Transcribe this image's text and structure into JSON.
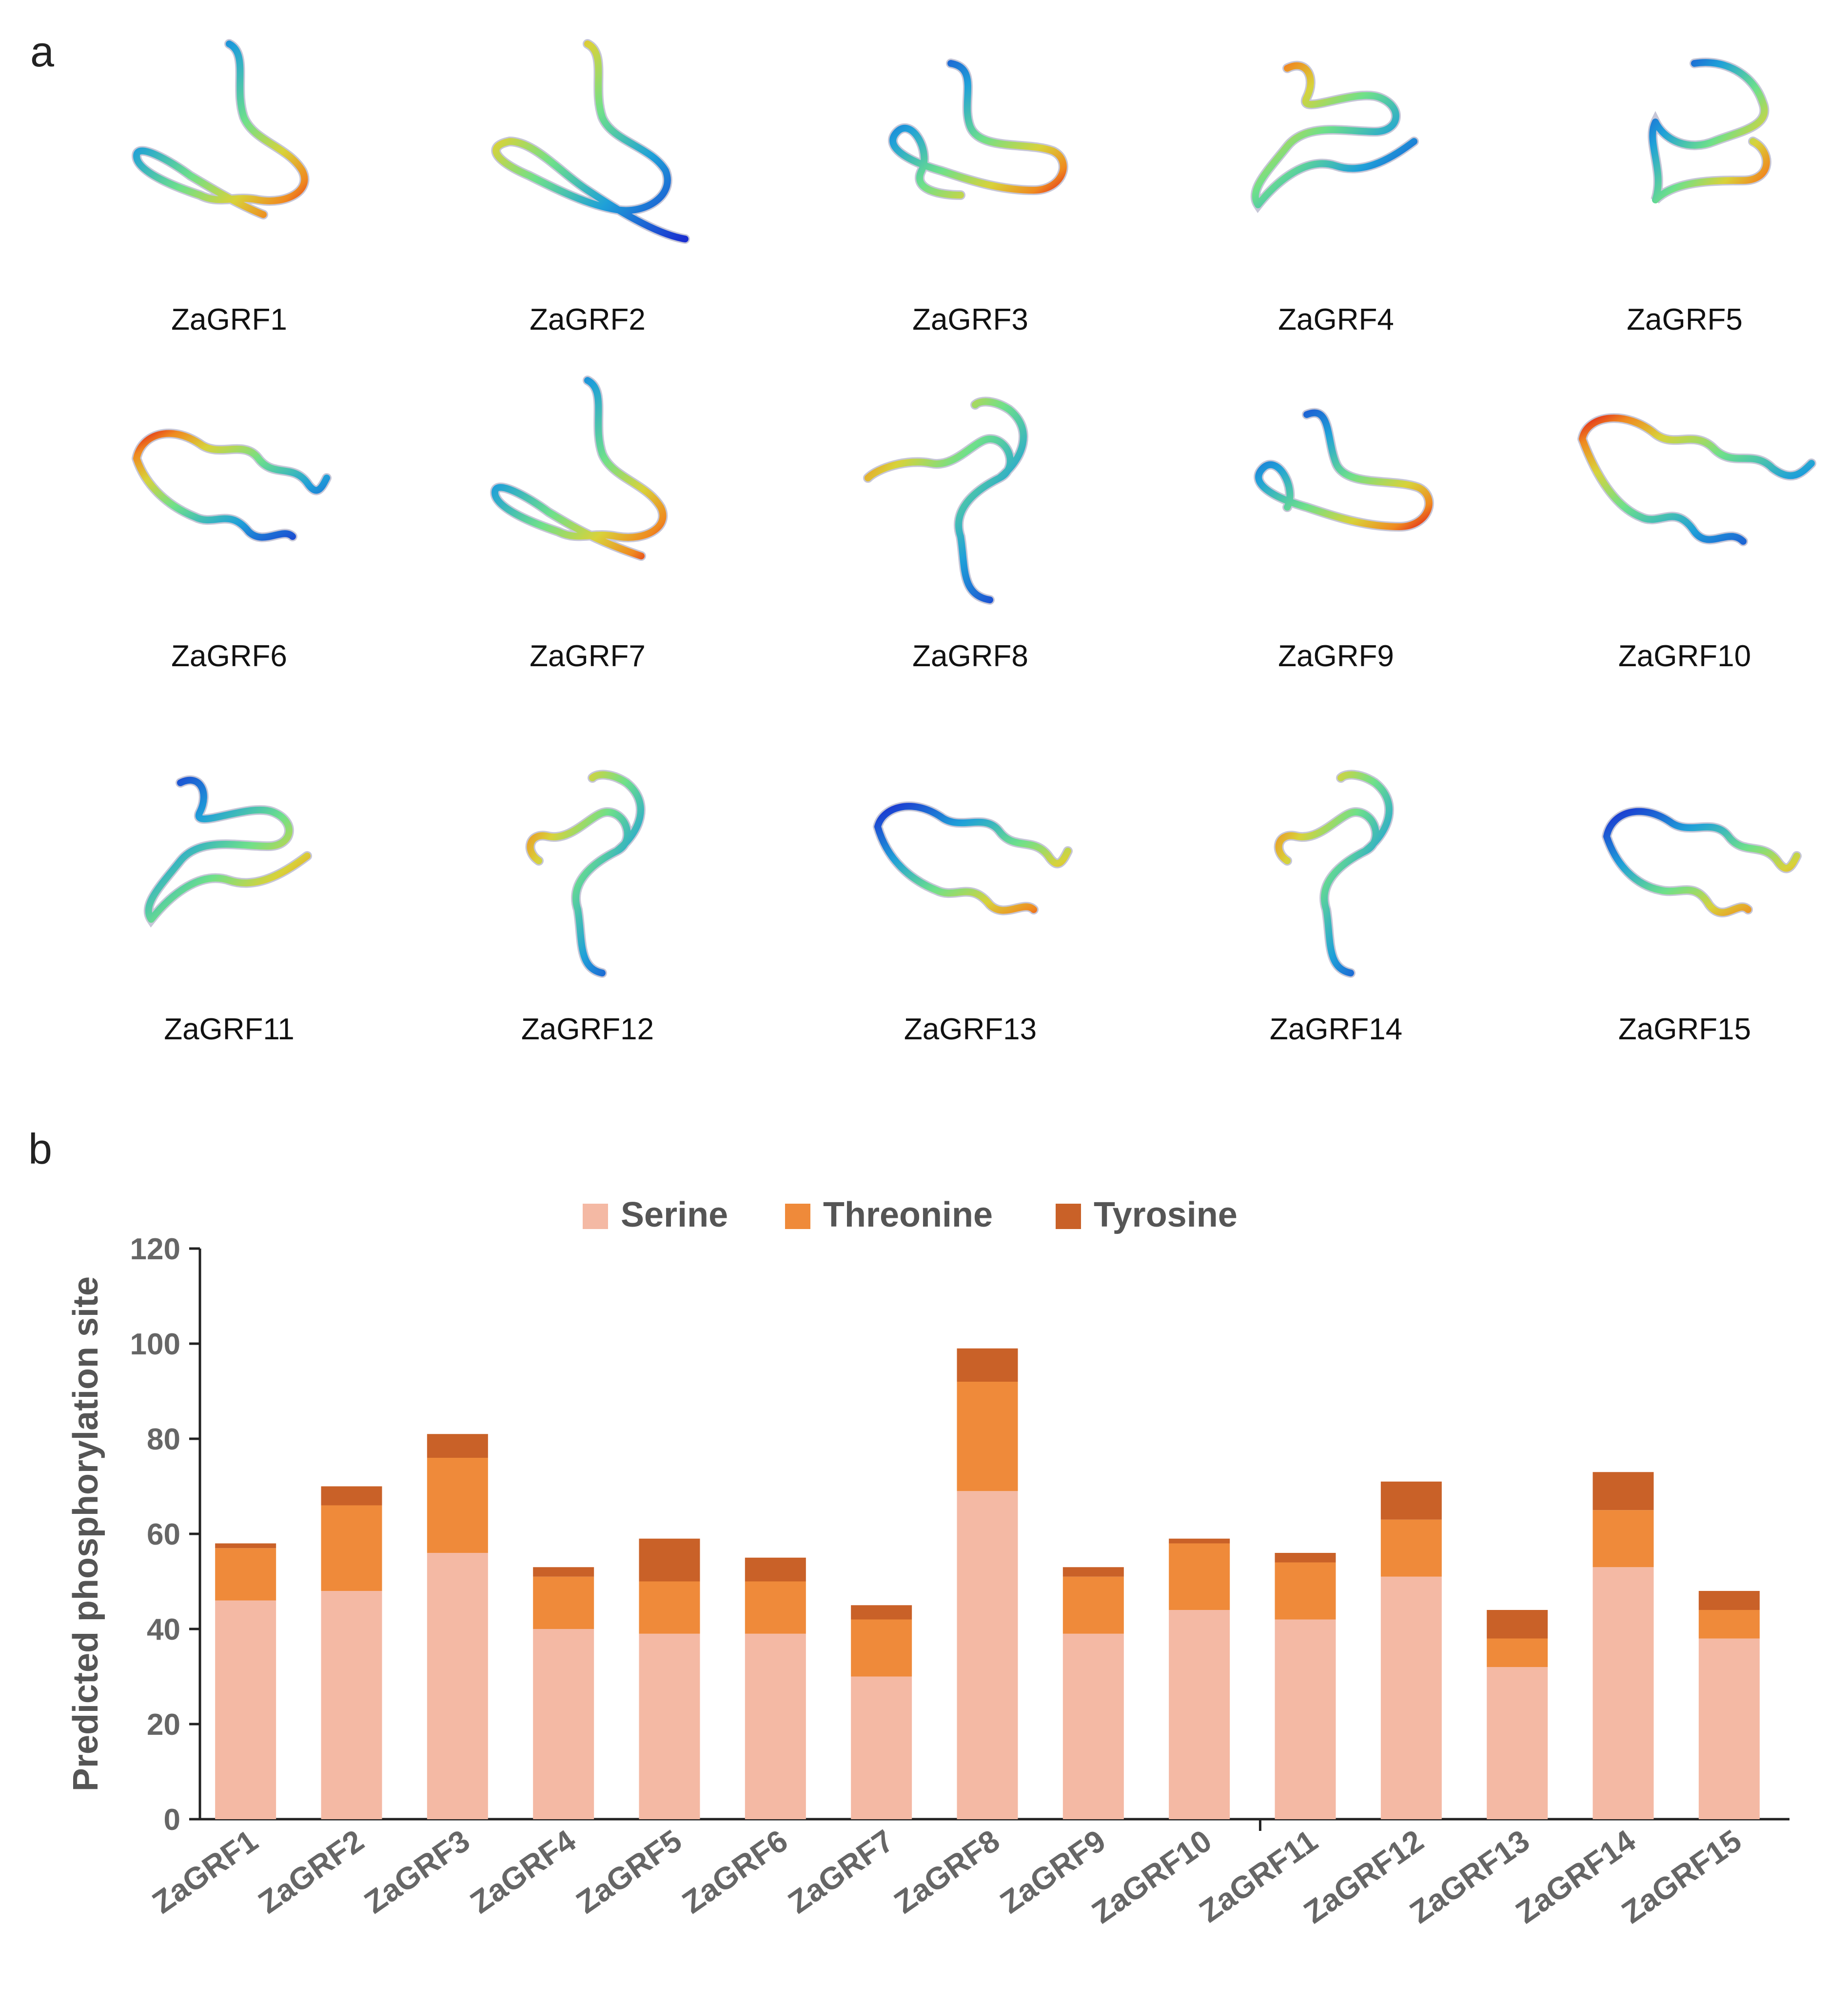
{
  "panel_a": {
    "label": "a",
    "proteins": [
      "ZaGRF1",
      "ZaGRF2",
      "ZaGRF3",
      "ZaGRF4",
      "ZaGRF5",
      "ZaGRF6",
      "ZaGRF7",
      "ZaGRF8",
      "ZaGRF9",
      "ZaGRF10",
      "ZaGRF11",
      "ZaGRF12",
      "ZaGRF13",
      "ZaGRF14",
      "ZaGRF15"
    ]
  },
  "panel_b": {
    "label": "b"
  },
  "chart_data": {
    "type": "bar",
    "stacked": true,
    "categories": [
      "ZaGRF1",
      "ZaGRF2",
      "ZaGRF3",
      "ZaGRF4",
      "ZaGRF5",
      "ZaGRF6",
      "ZaGRF7",
      "ZaGRF8",
      "ZaGRF9",
      "ZaGRF10",
      "ZaGRF11",
      "ZaGRF12",
      "ZaGRF13",
      "ZaGRF14",
      "ZaGRF15"
    ],
    "series": [
      {
        "name": "Serine",
        "color": "#f4b9a4",
        "values": [
          46,
          48,
          56,
          40,
          39,
          39,
          30,
          69,
          39,
          44,
          42,
          51,
          32,
          53,
          38
        ]
      },
      {
        "name": "Threonine",
        "color": "#ef8a3a",
        "values": [
          11,
          18,
          20,
          11,
          11,
          11,
          12,
          23,
          12,
          14,
          12,
          12,
          6,
          12,
          6
        ]
      },
      {
        "name": "Tyrosine",
        "color": "#c96128",
        "values": [
          1,
          4,
          5,
          2,
          9,
          5,
          3,
          7,
          2,
          1,
          2,
          8,
          6,
          8,
          4
        ]
      }
    ],
    "ylabel": "Predicted phosphorylation site",
    "ylim": [
      0,
      120
    ],
    "yticks": [
      0,
      20,
      40,
      60,
      80,
      100,
      120
    ],
    "grid": false,
    "legend_position": "top-center"
  }
}
